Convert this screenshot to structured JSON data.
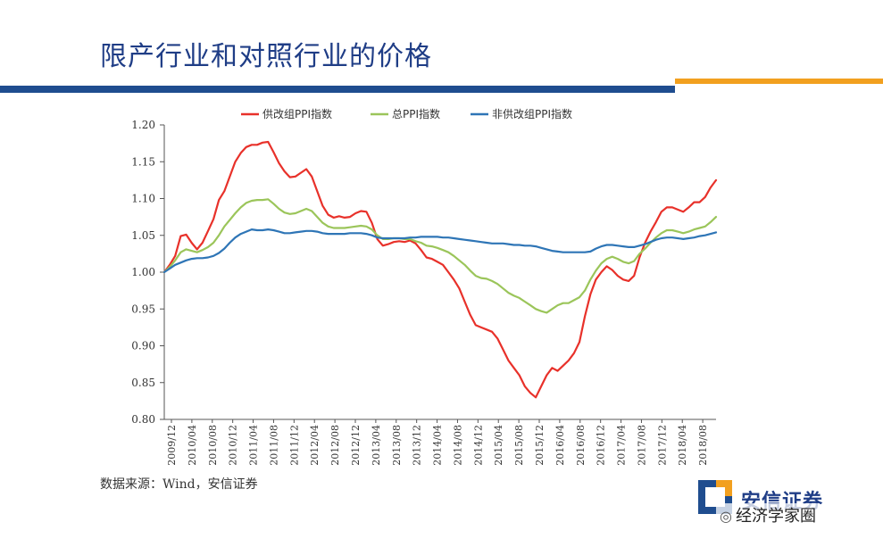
{
  "page": {
    "title": "限产行业和对照行业的价格",
    "source": "数据来源：Wind，安信证券",
    "brand": "安信证券",
    "watermark": "经济学家圈"
  },
  "colors": {
    "title": "#1f3d86",
    "bar_blue": "#1f4d8f",
    "bar_orange": "#f2a01f"
  },
  "chart_data": {
    "type": "line",
    "x_labels": [
      "2009/12",
      "2010/04",
      "2010/08",
      "2010/12",
      "2011/04",
      "2011/08",
      "2011/12",
      "2012/04",
      "2012/08",
      "2012/12",
      "2013/04",
      "2013/08",
      "2013/12",
      "2014/04",
      "2014/08",
      "2014/12",
      "2015/04",
      "2015/08",
      "2015/12",
      "2016/04",
      "2016/08",
      "2016/12",
      "2017/04",
      "2017/08",
      "2017/12",
      "2018/04",
      "2018/08"
    ],
    "ylim": [
      0.8,
      1.2
    ],
    "yticks": [
      "0.80",
      "0.85",
      "0.90",
      "0.95",
      "1.00",
      "1.05",
      "1.10",
      "1.15",
      "1.20"
    ],
    "legend_position": "top",
    "series": [
      {
        "name": "供改组PPI指数",
        "color": "#e8312a",
        "values": [
          1.0,
          1.01,
          1.022,
          1.049,
          1.051,
          1.04,
          1.031,
          1.04,
          1.056,
          1.072,
          1.098,
          1.11,
          1.13,
          1.15,
          1.162,
          1.17,
          1.173,
          1.173,
          1.176,
          1.177,
          1.163,
          1.148,
          1.137,
          1.129,
          1.13,
          1.135,
          1.14,
          1.13,
          1.11,
          1.09,
          1.078,
          1.074,
          1.076,
          1.074,
          1.075,
          1.08,
          1.083,
          1.082,
          1.067,
          1.045,
          1.036,
          1.038,
          1.041,
          1.042,
          1.041,
          1.043,
          1.039,
          1.03,
          1.02,
          1.018,
          1.014,
          1.01,
          1.0,
          0.99,
          0.978,
          0.96,
          0.942,
          0.928,
          0.925,
          0.922,
          0.919,
          0.91,
          0.895,
          0.88,
          0.87,
          0.86,
          0.845,
          0.836,
          0.83,
          0.845,
          0.86,
          0.87,
          0.866,
          0.873,
          0.88,
          0.89,
          0.905,
          0.94,
          0.97,
          0.99,
          1.0,
          1.008,
          1.003,
          0.995,
          0.99,
          0.988,
          0.995,
          1.02,
          1.04,
          1.055,
          1.068,
          1.082,
          1.088,
          1.088,
          1.085,
          1.082,
          1.088,
          1.095,
          1.095,
          1.102,
          1.115,
          1.125
        ]
      },
      {
        "name": "总PPI指数",
        "color": "#9bc55a",
        "values": [
          1.0,
          1.007,
          1.016,
          1.027,
          1.031,
          1.029,
          1.027,
          1.03,
          1.034,
          1.04,
          1.05,
          1.062,
          1.071,
          1.08,
          1.088,
          1.094,
          1.097,
          1.098,
          1.098,
          1.099,
          1.093,
          1.086,
          1.081,
          1.079,
          1.08,
          1.083,
          1.086,
          1.083,
          1.075,
          1.067,
          1.062,
          1.06,
          1.06,
          1.06,
          1.061,
          1.062,
          1.063,
          1.062,
          1.058,
          1.05,
          1.045,
          1.045,
          1.046,
          1.046,
          1.045,
          1.045,
          1.042,
          1.04,
          1.036,
          1.035,
          1.033,
          1.03,
          1.027,
          1.022,
          1.016,
          1.01,
          1.002,
          0.995,
          0.992,
          0.991,
          0.988,
          0.984,
          0.978,
          0.972,
          0.968,
          0.965,
          0.96,
          0.955,
          0.95,
          0.947,
          0.945,
          0.95,
          0.955,
          0.958,
          0.958,
          0.962,
          0.966,
          0.975,
          0.99,
          1.002,
          1.012,
          1.018,
          1.021,
          1.018,
          1.014,
          1.012,
          1.015,
          1.025,
          1.032,
          1.04,
          1.047,
          1.053,
          1.057,
          1.057,
          1.055,
          1.053,
          1.055,
          1.058,
          1.06,
          1.062,
          1.068,
          1.075
        ]
      },
      {
        "name": "非供改组PPI指数",
        "color": "#2e75b6",
        "values": [
          1.0,
          1.005,
          1.01,
          1.013,
          1.016,
          1.018,
          1.019,
          1.019,
          1.02,
          1.022,
          1.026,
          1.032,
          1.04,
          1.047,
          1.052,
          1.055,
          1.058,
          1.057,
          1.057,
          1.058,
          1.057,
          1.055,
          1.053,
          1.053,
          1.054,
          1.055,
          1.056,
          1.056,
          1.055,
          1.053,
          1.052,
          1.052,
          1.052,
          1.052,
          1.053,
          1.053,
          1.053,
          1.052,
          1.05,
          1.047,
          1.046,
          1.046,
          1.046,
          1.046,
          1.046,
          1.047,
          1.047,
          1.048,
          1.048,
          1.048,
          1.048,
          1.047,
          1.047,
          1.046,
          1.045,
          1.044,
          1.043,
          1.042,
          1.041,
          1.04,
          1.039,
          1.039,
          1.039,
          1.038,
          1.037,
          1.037,
          1.036,
          1.036,
          1.035,
          1.033,
          1.031,
          1.029,
          1.028,
          1.027,
          1.027,
          1.027,
          1.027,
          1.027,
          1.028,
          1.032,
          1.035,
          1.037,
          1.037,
          1.036,
          1.035,
          1.034,
          1.034,
          1.036,
          1.038,
          1.041,
          1.044,
          1.046,
          1.047,
          1.047,
          1.046,
          1.045,
          1.046,
          1.047,
          1.049,
          1.05,
          1.052,
          1.054
        ]
      }
    ]
  }
}
